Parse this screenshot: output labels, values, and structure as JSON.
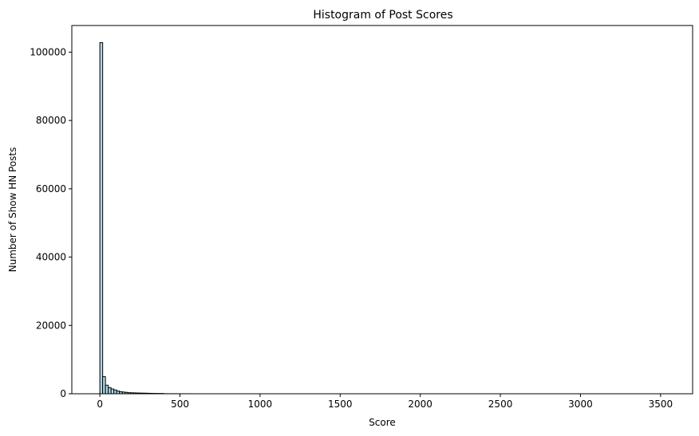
{
  "chart_data": {
    "type": "bar",
    "title": "Histogram of Post Scores",
    "xlabel": "Score",
    "ylabel": "Number of Show HN Posts",
    "xlim": [
      -175,
      3700
    ],
    "ylim": [
      0,
      107800
    ],
    "xticks": [
      0,
      500,
      1000,
      1500,
      2000,
      2500,
      3000,
      3500
    ],
    "yticks": [
      0,
      20000,
      40000,
      60000,
      80000,
      100000
    ],
    "bin_width": 17.5,
    "bins_x_start": [
      0,
      17.5,
      35,
      52.5,
      70,
      87.5,
      105,
      122.5,
      140,
      157.5,
      175,
      192.5,
      210,
      227.5,
      245,
      262.5,
      280,
      297.5,
      315,
      332.5,
      350,
      367.5,
      385,
      402.5,
      420,
      437.5,
      455,
      472.5,
      490,
      507.5,
      525,
      542.5
    ],
    "values": [
      102800,
      5000,
      2500,
      1800,
      1400,
      1100,
      800,
      600,
      500,
      400,
      300,
      280,
      250,
      220,
      200,
      180,
      160,
      140,
      120,
      100,
      90,
      80,
      70,
      20,
      15,
      12,
      10,
      9,
      8,
      6,
      5,
      4
    ],
    "bar_fill": "#add8e6",
    "bar_edge": "#000000",
    "grid": false,
    "legend": "none"
  }
}
